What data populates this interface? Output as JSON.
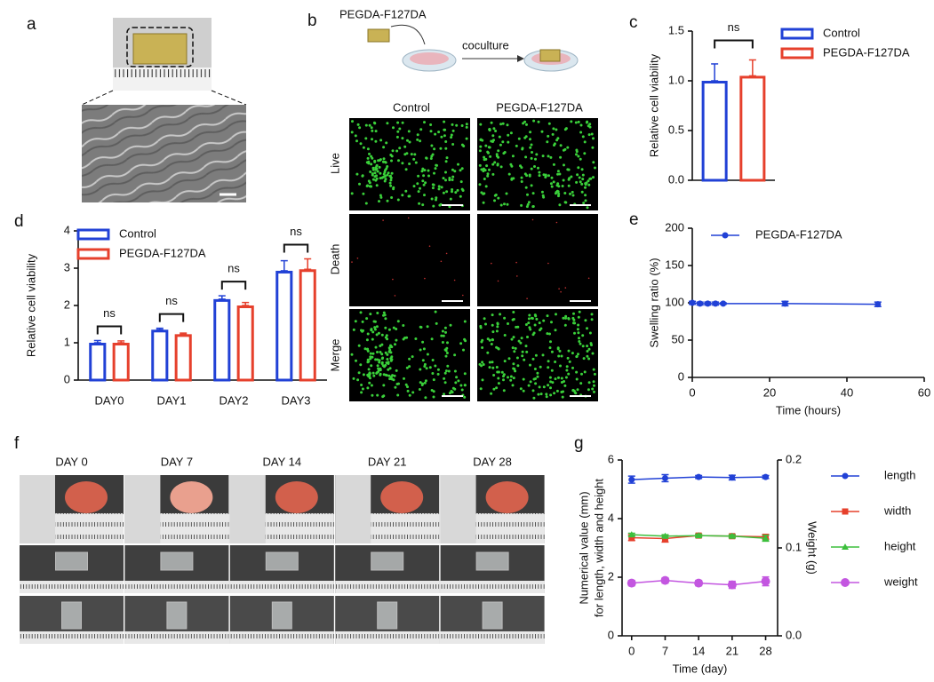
{
  "panel_letters": [
    "a",
    "b",
    "c",
    "d",
    "e",
    "f",
    "g"
  ],
  "panel_b": {
    "schematic_label": "PEGDA-F127DA",
    "arrow_label": "coculture",
    "columns": [
      "Control",
      "PEGDA-F127DA"
    ],
    "rows": [
      "Live",
      "Death",
      "Merge"
    ]
  },
  "panel_f": {
    "columns": [
      "DAY 0",
      "DAY 7",
      "DAY 14",
      "DAY 21",
      "DAY 28"
    ]
  },
  "chart_data": [
    {
      "type": "bar",
      "ylabel": "Relative cell viability",
      "categories": [
        null
      ],
      "series": [
        {
          "name": "Control",
          "color": "#2141d6",
          "values": [
            1.0
          ],
          "errors": [
            0.17
          ]
        },
        {
          "name": "PEGDA-F127DA",
          "color": "#e6402c",
          "values": [
            1.05
          ],
          "errors": [
            0.16
          ]
        }
      ],
      "annotations": [
        "ns"
      ],
      "ylim": [
        0,
        1.5
      ],
      "yticks": [
        {
          "value": 0,
          "label": "0.0"
        },
        0.5,
        {
          "value": 1,
          "label": "1.0"
        },
        1.5
      ]
    },
    {
      "type": "bar",
      "ylabel": "Relative cell viability",
      "categories": [
        "DAY0",
        "DAY1",
        "DAY2",
        "DAY3"
      ],
      "series": [
        {
          "name": "Control",
          "color": "#2141d6",
          "values": [
            1.0,
            1.35,
            2.17,
            2.93
          ],
          "errors": [
            0.06,
            0.04,
            0.09,
            0.27
          ]
        },
        {
          "name": "PEGDA-F127DA",
          "color": "#e6402c",
          "values": [
            1.0,
            1.23,
            2.0,
            2.97
          ],
          "errors": [
            0.05,
            0.03,
            0.08,
            0.28
          ]
        }
      ],
      "annotations": [
        "ns",
        "ns",
        "ns",
        "ns"
      ],
      "ylim": [
        0,
        4
      ],
      "yticks": [
        0,
        1,
        2,
        3,
        4
      ]
    },
    {
      "type": "line",
      "xlabel": "Time (hours)",
      "ylabel": "Swelling ratio    (%)",
      "x": [
        0,
        2,
        4,
        6,
        8,
        24,
        48
      ],
      "series": [
        {
          "name": "PEGDA-F127DA",
          "color": "#2141d6",
          "marker": "circle",
          "values": [
            100,
            99,
            99,
            99,
            99,
            99,
            98
          ],
          "errors": [
            2,
            2,
            2,
            2,
            1,
            3,
            3
          ]
        }
      ],
      "xlim": [
        0,
        60
      ],
      "xticks": [
        0,
        20,
        40,
        60
      ],
      "ylim": [
        0,
        200
      ],
      "yticks": [
        0,
        50,
        100,
        150,
        200
      ]
    },
    {
      "type": "line",
      "xlabel": "Time (day)",
      "ylabel": [
        "Numerical value (mm)",
        "for length, width and height"
      ],
      "y2label": "Weight (g)",
      "x": [
        0,
        7,
        14,
        21,
        28
      ],
      "series": [
        {
          "name": "length",
          "color": "#2141d6",
          "marker": "circle",
          "values": [
            5.33,
            5.38,
            5.42,
            5.4,
            5.42
          ],
          "errors": [
            0.12,
            0.12,
            0.05,
            0.08,
            0.05
          ]
        },
        {
          "name": "width",
          "color": "#e6402c",
          "marker": "square",
          "values": [
            3.35,
            3.32,
            3.42,
            3.4,
            3.38
          ],
          "errors": [
            0.1,
            0.12,
            0.05,
            0.05,
            0.08
          ]
        },
        {
          "name": "height",
          "color": "#3cbf3c",
          "marker": "triangle",
          "values": [
            3.45,
            3.4,
            3.42,
            3.4,
            3.33
          ],
          "errors": [
            0.05,
            0.05,
            0.05,
            0.05,
            0.1
          ]
        },
        {
          "name": "weight",
          "color": "#c356e0",
          "marker": "circle-large",
          "axis": "y2",
          "values": [
            0.06,
            0.063,
            0.06,
            0.058,
            0.062
          ],
          "errors": [
            0.003,
            0.003,
            0.003,
            0.004,
            0.005
          ]
        }
      ],
      "xlim": [
        -2,
        30.5
      ],
      "xticks": [
        0,
        7,
        14,
        21,
        28
      ],
      "ylim": [
        0,
        6
      ],
      "yticks": [
        0,
        2,
        4,
        6
      ],
      "y2lim": [
        0,
        0.2
      ],
      "y2ticks": [
        {
          "value": 0,
          "label": "0.0"
        },
        0.1,
        0.2
      ]
    }
  ]
}
